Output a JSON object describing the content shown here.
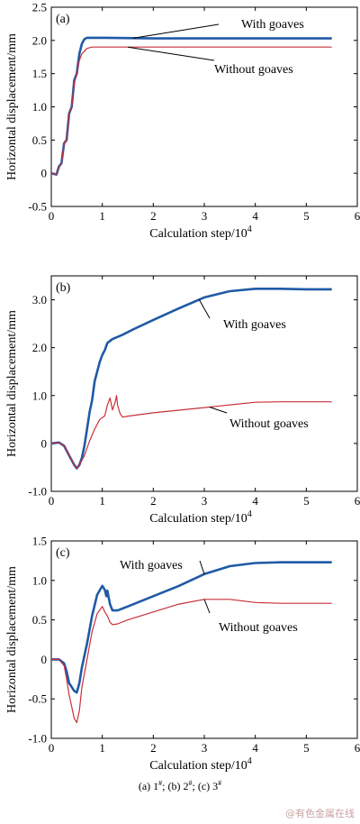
{
  "chart_data": [
    {
      "type": "line",
      "panel_label": "(a)",
      "xlabel": "Calculation step/10",
      "xlabel_sup": "4",
      "ylabel": "Horizontal displacement/mm",
      "xlim": [
        0,
        6
      ],
      "ylim": [
        -0.5,
        2.5
      ],
      "xticks": [
        0,
        1,
        2,
        3,
        4,
        5,
        6
      ],
      "yticks": [
        -0.5,
        0,
        0.5,
        1.0,
        1.5,
        2.0,
        2.5
      ],
      "ytick_labels": [
        "-0.5",
        "0",
        "0.5",
        "1.0",
        "1.5",
        "2.0",
        "2.5"
      ],
      "grid": false,
      "series": [
        {
          "name": "With goaves",
          "color": "#1f5aa6",
          "points": [
            [
              0,
              0
            ],
            [
              0.1,
              -0.02
            ],
            [
              0.15,
              0.1
            ],
            [
              0.2,
              0.15
            ],
            [
              0.25,
              0.45
            ],
            [
              0.3,
              0.5
            ],
            [
              0.35,
              0.9
            ],
            [
              0.4,
              1.0
            ],
            [
              0.45,
              1.4
            ],
            [
              0.5,
              1.5
            ],
            [
              0.55,
              1.8
            ],
            [
              0.6,
              1.95
            ],
            [
              0.65,
              2.02
            ],
            [
              0.7,
              2.04
            ],
            [
              0.8,
              2.04
            ],
            [
              1.0,
              2.04
            ],
            [
              2.0,
              2.03
            ],
            [
              3.0,
              2.03
            ],
            [
              4.0,
              2.03
            ],
            [
              5.5,
              2.03
            ]
          ]
        },
        {
          "name": "Without goaves",
          "color": "#c8303a",
          "points": [
            [
              0,
              0
            ],
            [
              0.1,
              -0.02
            ],
            [
              0.15,
              0.1
            ],
            [
              0.2,
              0.15
            ],
            [
              0.25,
              0.45
            ],
            [
              0.3,
              0.5
            ],
            [
              0.35,
              0.9
            ],
            [
              0.4,
              1.0
            ],
            [
              0.45,
              1.35
            ],
            [
              0.5,
              1.5
            ],
            [
              0.55,
              1.7
            ],
            [
              0.6,
              1.8
            ],
            [
              0.7,
              1.88
            ],
            [
              0.8,
              1.9
            ],
            [
              1.0,
              1.9
            ],
            [
              2.0,
              1.9
            ],
            [
              3.0,
              1.9
            ],
            [
              4.0,
              1.9
            ],
            [
              5.5,
              1.9
            ]
          ]
        }
      ]
    },
    {
      "type": "line",
      "panel_label": "(b)",
      "xlabel": "Calculation step/10",
      "xlabel_sup": "4",
      "ylabel": "Horizontal displacement/mm",
      "xlim": [
        0,
        6
      ],
      "ylim": [
        -1.0,
        3.5
      ],
      "xticks": [
        0,
        1,
        2,
        3,
        4,
        5,
        6
      ],
      "yticks": [
        -1.0,
        0,
        1.0,
        2.0,
        3.0
      ],
      "ytick_labels": [
        "-1.0",
        "0",
        "1.0",
        "2.0",
        "3.0"
      ],
      "grid": false,
      "series": [
        {
          "name": "With goaves",
          "color": "#1f5aa6",
          "points": [
            [
              0,
              0
            ],
            [
              0.15,
              0.02
            ],
            [
              0.25,
              -0.05
            ],
            [
              0.35,
              -0.25
            ],
            [
              0.45,
              -0.45
            ],
            [
              0.5,
              -0.52
            ],
            [
              0.55,
              -0.45
            ],
            [
              0.6,
              -0.3
            ],
            [
              0.65,
              -0.05
            ],
            [
              0.7,
              0.3
            ],
            [
              0.75,
              0.65
            ],
            [
              0.8,
              0.9
            ],
            [
              0.85,
              1.3
            ],
            [
              0.9,
              1.5
            ],
            [
              0.95,
              1.7
            ],
            [
              1.0,
              1.85
            ],
            [
              1.05,
              1.95
            ],
            [
              1.1,
              2.1
            ],
            [
              1.2,
              2.18
            ],
            [
              1.4,
              2.27
            ],
            [
              1.6,
              2.38
            ],
            [
              2.0,
              2.58
            ],
            [
              2.5,
              2.82
            ],
            [
              3.0,
              3.05
            ],
            [
              3.5,
              3.18
            ],
            [
              4.0,
              3.23
            ],
            [
              4.5,
              3.23
            ],
            [
              5.0,
              3.22
            ],
            [
              5.5,
              3.22
            ]
          ]
        },
        {
          "name": "Without goaves",
          "color": "#c8303a",
          "points": [
            [
              0,
              0
            ],
            [
              0.15,
              0.02
            ],
            [
              0.25,
              -0.05
            ],
            [
              0.35,
              -0.25
            ],
            [
              0.45,
              -0.45
            ],
            [
              0.5,
              -0.52
            ],
            [
              0.55,
              -0.45
            ],
            [
              0.65,
              -0.25
            ],
            [
              0.75,
              0.05
            ],
            [
              0.85,
              0.3
            ],
            [
              0.95,
              0.5
            ],
            [
              1.05,
              0.58
            ],
            [
              1.1,
              0.8
            ],
            [
              1.15,
              0.95
            ],
            [
              1.2,
              0.7
            ],
            [
              1.25,
              0.85
            ],
            [
              1.28,
              1.0
            ],
            [
              1.3,
              0.8
            ],
            [
              1.35,
              0.62
            ],
            [
              1.4,
              0.55
            ],
            [
              1.5,
              0.57
            ],
            [
              2.0,
              0.64
            ],
            [
              3.0,
              0.75
            ],
            [
              4.0,
              0.86
            ],
            [
              4.5,
              0.87
            ],
            [
              5.0,
              0.87
            ],
            [
              5.5,
              0.87
            ]
          ]
        }
      ]
    },
    {
      "type": "line",
      "panel_label": "(c)",
      "xlabel": "Calculation step/10",
      "xlabel_sup": "4",
      "ylabel": "Horizontal displacement/mm",
      "xlim": [
        0,
        6
      ],
      "ylim": [
        -1.0,
        1.5
      ],
      "xticks": [
        0,
        1,
        2,
        3,
        4,
        5,
        6
      ],
      "yticks": [
        -1.0,
        -0.5,
        0,
        0.5,
        1.0,
        1.5
      ],
      "ytick_labels": [
        "-1.0",
        "-0.5",
        "0",
        "0.5",
        "1.0",
        "1.5"
      ],
      "grid": false,
      "series": [
        {
          "name": "With goaves",
          "color": "#1f5aa6",
          "points": [
            [
              0,
              0
            ],
            [
              0.15,
              0.0
            ],
            [
              0.25,
              -0.05
            ],
            [
              0.3,
              -0.15
            ],
            [
              0.35,
              -0.3
            ],
            [
              0.45,
              -0.4
            ],
            [
              0.5,
              -0.42
            ],
            [
              0.55,
              -0.3
            ],
            [
              0.6,
              -0.1
            ],
            [
              0.7,
              0.2
            ],
            [
              0.8,
              0.55
            ],
            [
              0.9,
              0.82
            ],
            [
              1.0,
              0.93
            ],
            [
              1.05,
              0.88
            ],
            [
              1.08,
              0.8
            ],
            [
              1.1,
              0.87
            ],
            [
              1.15,
              0.7
            ],
            [
              1.2,
              0.62
            ],
            [
              1.3,
              0.62
            ],
            [
              1.5,
              0.67
            ],
            [
              2.0,
              0.8
            ],
            [
              2.5,
              0.93
            ],
            [
              3.0,
              1.08
            ],
            [
              3.5,
              1.18
            ],
            [
              4.0,
              1.22
            ],
            [
              4.5,
              1.23
            ],
            [
              5.0,
              1.23
            ],
            [
              5.5,
              1.23
            ]
          ]
        },
        {
          "name": "Without goaves",
          "color": "#c8303a",
          "points": [
            [
              0,
              0
            ],
            [
              0.15,
              0.0
            ],
            [
              0.25,
              -0.08
            ],
            [
              0.3,
              -0.25
            ],
            [
              0.35,
              -0.45
            ],
            [
              0.4,
              -0.6
            ],
            [
              0.45,
              -0.75
            ],
            [
              0.5,
              -0.8
            ],
            [
              0.55,
              -0.65
            ],
            [
              0.6,
              -0.35
            ],
            [
              0.7,
              0.0
            ],
            [
              0.8,
              0.35
            ],
            [
              0.9,
              0.58
            ],
            [
              1.0,
              0.67
            ],
            [
              1.05,
              0.6
            ],
            [
              1.1,
              0.55
            ],
            [
              1.15,
              0.47
            ],
            [
              1.2,
              0.44
            ],
            [
              1.3,
              0.45
            ],
            [
              1.5,
              0.5
            ],
            [
              2.0,
              0.6
            ],
            [
              2.5,
              0.7
            ],
            [
              3.0,
              0.76
            ],
            [
              3.5,
              0.76
            ],
            [
              4.0,
              0.72
            ],
            [
              4.5,
              0.71
            ],
            [
              5.0,
              0.71
            ],
            [
              5.5,
              0.71
            ]
          ]
        }
      ]
    }
  ],
  "caption": {
    "a": "(a) 1",
    "b": "; (b) 2",
    "c": "; (c) 3",
    "sup": "#"
  },
  "watermark": "@有色金属在线"
}
